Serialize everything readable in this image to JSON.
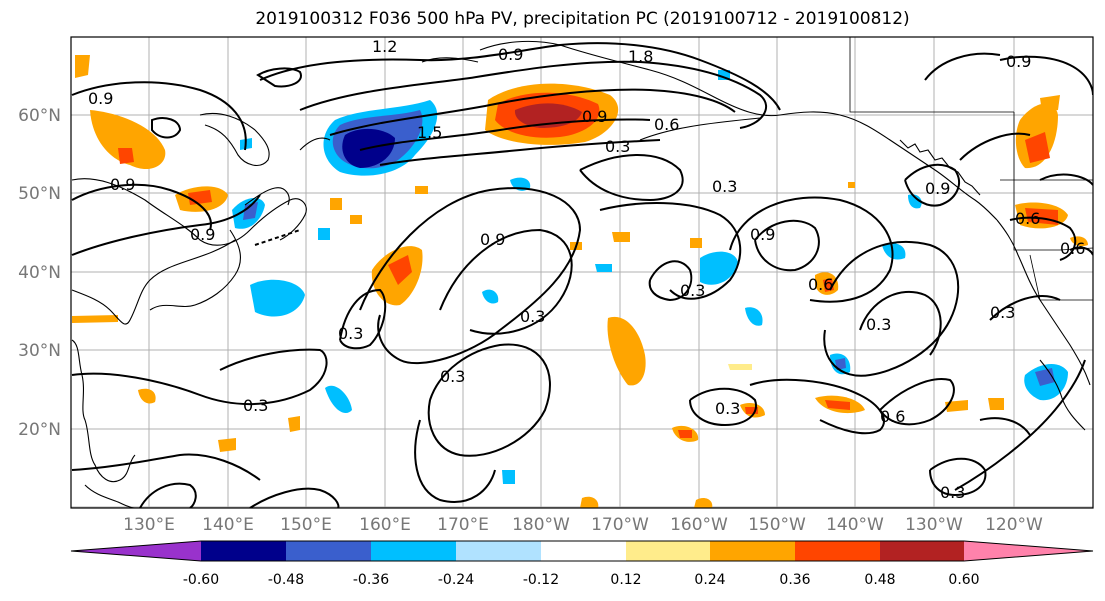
{
  "title": "2019100312 F036 500 hPa PV, precipitation PC (2019100712 - 2019100812)",
  "lat_labels": [
    "60°N",
    "50°N",
    "40°N",
    "30°N",
    "20°N"
  ],
  "lon_labels": [
    "130°E",
    "140°E",
    "150°E",
    "160°E",
    "170°E",
    "180°W",
    "170°W",
    "160°W",
    "150°W",
    "140°W",
    "130°W",
    "120°W"
  ],
  "colorbar": {
    "colors": [
      "#9932cc",
      "#00008b",
      "#3a5fcd",
      "#00bfff",
      "#b0e2ff",
      "#ffffff",
      "#ffec8b",
      "#ffa500",
      "#ff4500",
      "#b22222",
      "#ff82ab"
    ],
    "tick_labels": [
      "-0.60",
      "-0.48",
      "-0.36",
      "-0.24",
      "-0.12",
      "0.12",
      "0.24",
      "0.36",
      "0.48",
      "0.60"
    ]
  },
  "contour_labels": [
    "1.2",
    "0.9",
    "1.8",
    "0.9",
    "0.9",
    "1.5",
    "0.9",
    "0.6",
    "0.3",
    "0.9",
    "0.9",
    "0.3",
    "0.9",
    "0.6",
    "0.6",
    "0.3",
    "0.9",
    "0.3",
    "0.9",
    "0.6",
    "0.3",
    "0.3",
    "0.3",
    "0.3",
    "0.6",
    "0.3",
    "0.3",
    "0.3"
  ]
}
